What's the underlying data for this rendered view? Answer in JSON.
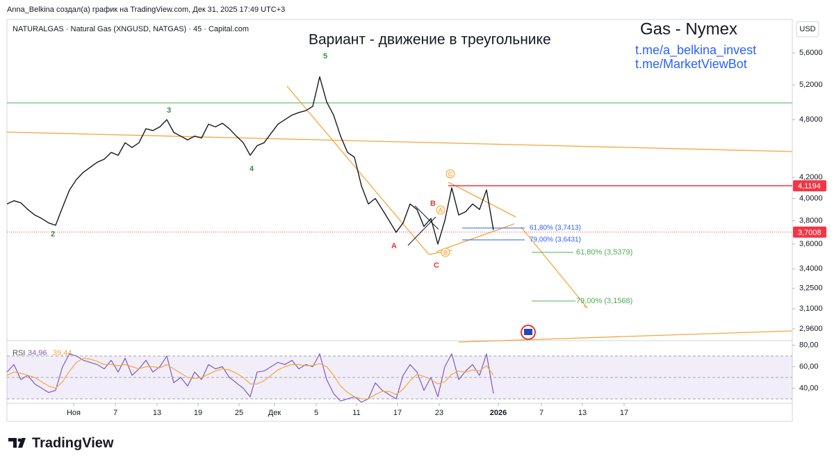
{
  "header": "Anna_Belkina создал(а) график на TradingView.com, Дек 31, 2025 17:49 UTC+3",
  "footer": "TradingView",
  "chart_data": [
    {
      "type": "line",
      "title": "Вариант - движение в треугольнике",
      "subtitle": "NATURALGAS · Natural Gas (XNGUSD, NATGAS) · 45 · Capital.com",
      "currency": "USD",
      "annotations": [
        "Gas - Nymex",
        "t.me/a_belkina_invest",
        "t.me/MarketViewBot"
      ],
      "waves": [
        "5",
        "3",
        "4",
        "2",
        "A",
        "B",
        "C",
        "C",
        "A",
        "B"
      ],
      "fib_labels": [
        "61,80% (3,7413)",
        "79,00% (3,6431)",
        "61,80% (3,5379)",
        "79,00% (3,1568)"
      ],
      "log": true,
      "ylim": [
        2.88,
        6.05
      ],
      "yticks": [
        {
          "value": 5.6,
          "label": "5,6000"
        },
        {
          "value": 5.2,
          "label": "5,2000"
        },
        {
          "value": 4.8,
          "label": "4,8000"
        },
        {
          "value": 4.2,
          "label": "4,2000"
        },
        {
          "value": 4.0,
          "label": "4,0000"
        },
        {
          "value": 3.8,
          "label": "3,8000"
        },
        {
          "value": 3.6,
          "label": "3,6000"
        },
        {
          "value": 3.4,
          "label": "3,4000"
        },
        {
          "value": 3.25,
          "label": "3,2500"
        },
        {
          "value": 3.1,
          "label": "3,1000"
        },
        {
          "value": 2.96,
          "label": "2,9600"
        }
      ],
      "xlim": [
        0,
        113
      ],
      "xticks": [
        {
          "value": 9.6,
          "label": "Ноя"
        },
        {
          "value": 15.6,
          "label": "7"
        },
        {
          "value": 21.6,
          "label": "13"
        },
        {
          "value": 27.5,
          "label": "19"
        },
        {
          "value": 33.4,
          "label": "25"
        },
        {
          "value": 38.5,
          "label": "Дек"
        },
        {
          "value": 44.5,
          "label": "5"
        },
        {
          "value": 50.3,
          "label": "11"
        },
        {
          "value": 56.2,
          "label": "17"
        },
        {
          "value": 62.2,
          "label": "23"
        },
        {
          "value": 70.7,
          "label": "2026"
        },
        {
          "value": 76.9,
          "label": "7"
        },
        {
          "value": 82.8,
          "label": "13"
        },
        {
          "value": 88.8,
          "label": "17"
        }
      ],
      "price_tags": [
        {
          "value": 4.1194,
          "label": "4,1194"
        },
        {
          "value": 3.7008,
          "label": "3,7008"
        }
      ],
      "series": [
        {
          "color": "#131722",
          "values": [
            3.95,
            3.98,
            3.96,
            3.9,
            3.85,
            3.82,
            3.78,
            3.76,
            3.92,
            4.08,
            4.18,
            4.25,
            4.3,
            4.35,
            4.38,
            4.45,
            4.42,
            4.55,
            4.5,
            4.55,
            4.7,
            4.68,
            4.72,
            4.8,
            4.66,
            4.62,
            4.58,
            4.62,
            4.6,
            4.75,
            4.72,
            4.76,
            4.7,
            4.62,
            4.55,
            4.42,
            4.52,
            4.55,
            4.65,
            4.75,
            4.8,
            4.85,
            4.88,
            4.9,
            4.95,
            5.3,
            5.0,
            4.85,
            4.62,
            4.45,
            4.4,
            4.12,
            3.95,
            4.0,
            3.9,
            3.8,
            3.7,
            3.78,
            3.95,
            3.9,
            3.75,
            3.82,
            3.6,
            3.8,
            4.1,
            3.85,
            3.88,
            3.95,
            3.9,
            4.08,
            3.72
          ]
        }
      ]
    },
    {
      "type": "line",
      "indicator": "RSI",
      "readouts": [
        "34,96",
        "39,44"
      ],
      "ylim": [
        26,
        83
      ],
      "yticks": [
        {
          "value": 80,
          "label": "80,00"
        },
        {
          "value": 60,
          "label": "60,00"
        },
        {
          "value": 40,
          "label": "40,00"
        }
      ],
      "levels": [
        70,
        50,
        30
      ],
      "band_color": "#7e57c2",
      "xlim": [
        0,
        113
      ],
      "series": [
        {
          "color": "#7e57c2",
          "values": [
            55,
            62,
            48,
            52,
            44,
            40,
            36,
            38,
            60,
            72,
            70,
            66,
            64,
            62,
            58,
            66,
            55,
            68,
            52,
            58,
            66,
            55,
            60,
            70,
            45,
            50,
            42,
            55,
            48,
            62,
            58,
            60,
            50,
            45,
            40,
            32,
            55,
            56,
            60,
            64,
            62,
            66,
            58,
            62,
            60,
            72,
            48,
            35,
            28,
            30,
            32,
            27,
            30,
            45,
            38,
            34,
            30,
            52,
            62,
            55,
            38,
            50,
            32,
            60,
            72,
            48,
            56,
            62,
            52,
            72,
            35
          ]
        },
        {
          "color": "#f5a63a",
          "values": [
            52,
            55,
            54,
            52,
            50,
            46,
            42,
            40,
            46,
            56,
            64,
            68,
            67,
            65,
            62,
            62,
            61,
            62,
            60,
            58,
            60,
            60,
            59,
            62,
            58,
            54,
            50,
            49,
            50,
            53,
            56,
            58,
            57,
            54,
            50,
            44,
            44,
            47,
            52,
            57,
            60,
            62,
            62,
            61,
            61,
            63,
            60,
            52,
            42,
            36,
            32,
            30,
            30,
            34,
            37,
            37,
            34,
            39,
            47,
            53,
            51,
            48,
            44,
            46,
            53,
            56,
            55,
            57,
            56,
            61,
            52
          ]
        }
      ]
    }
  ]
}
